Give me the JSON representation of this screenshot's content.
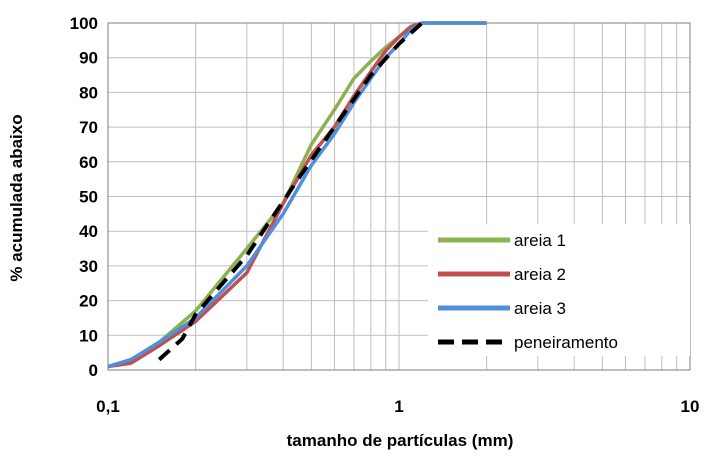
{
  "chart_data": {
    "type": "line",
    "title": "",
    "xlabel": "tamanho de partículas (mm)",
    "ylabel": "% acumulada abaixo",
    "x_scale": "log",
    "xlim": [
      0.1,
      10
    ],
    "ylim": [
      0,
      100
    ],
    "x_ticks": [
      0.1,
      1,
      10
    ],
    "x_tick_labels": [
      "0,1",
      "1",
      "10"
    ],
    "y_ticks": [
      0,
      10,
      20,
      30,
      40,
      50,
      60,
      70,
      80,
      90,
      100
    ],
    "y_tick_labels": [
      "0",
      "10",
      "20",
      "30",
      "40",
      "50",
      "60",
      "70",
      "80",
      "90",
      "100"
    ],
    "grid": true,
    "legend_position": "bottom-right",
    "series": [
      {
        "name": "areia 1",
        "color": "#8DB050",
        "dash": "solid",
        "points": [
          [
            0.1,
            1
          ],
          [
            0.12,
            3
          ],
          [
            0.15,
            8
          ],
          [
            0.2,
            17
          ],
          [
            0.3,
            35
          ],
          [
            0.4,
            48
          ],
          [
            0.5,
            65
          ],
          [
            0.6,
            75
          ],
          [
            0.7,
            84
          ],
          [
            0.8,
            89
          ],
          [
            0.9,
            93
          ],
          [
            1,
            96
          ],
          [
            1.1,
            99
          ],
          [
            1.2,
            100
          ],
          [
            1.5,
            100
          ],
          [
            2,
            100
          ]
        ]
      },
      {
        "name": "areia 2",
        "color": "#C0504D",
        "dash": "solid",
        "points": [
          [
            0.1,
            1
          ],
          [
            0.12,
            2
          ],
          [
            0.15,
            7
          ],
          [
            0.2,
            14
          ],
          [
            0.3,
            28
          ],
          [
            0.4,
            48
          ],
          [
            0.5,
            62
          ],
          [
            0.6,
            70
          ],
          [
            0.7,
            79
          ],
          [
            0.8,
            86
          ],
          [
            0.9,
            92
          ],
          [
            1,
            96
          ],
          [
            1.1,
            99
          ],
          [
            1.2,
            100
          ],
          [
            1.5,
            100
          ],
          [
            2,
            100
          ]
        ]
      },
      {
        "name": "areia 3",
        "color": "#4F8FDB",
        "dash": "solid",
        "points": [
          [
            0.1,
            1
          ],
          [
            0.12,
            3
          ],
          [
            0.15,
            8
          ],
          [
            0.2,
            15
          ],
          [
            0.3,
            30
          ],
          [
            0.4,
            45
          ],
          [
            0.5,
            59
          ],
          [
            0.6,
            68
          ],
          [
            0.7,
            77
          ],
          [
            0.8,
            84
          ],
          [
            0.9,
            90
          ],
          [
            1,
            94
          ],
          [
            1.1,
            98
          ],
          [
            1.2,
            100
          ],
          [
            1.5,
            100
          ],
          [
            2,
            100
          ]
        ]
      },
      {
        "name": "peneiramento",
        "color": "#000000",
        "dash": "dashed",
        "points": [
          [
            0.15,
            3
          ],
          [
            0.18,
            9
          ],
          [
            0.2,
            16
          ],
          [
            0.3,
            33
          ],
          [
            0.45,
            55
          ],
          [
            0.6,
            70
          ],
          [
            0.8,
            85
          ],
          [
            1,
            94
          ],
          [
            1.2,
            100
          ]
        ]
      }
    ]
  }
}
